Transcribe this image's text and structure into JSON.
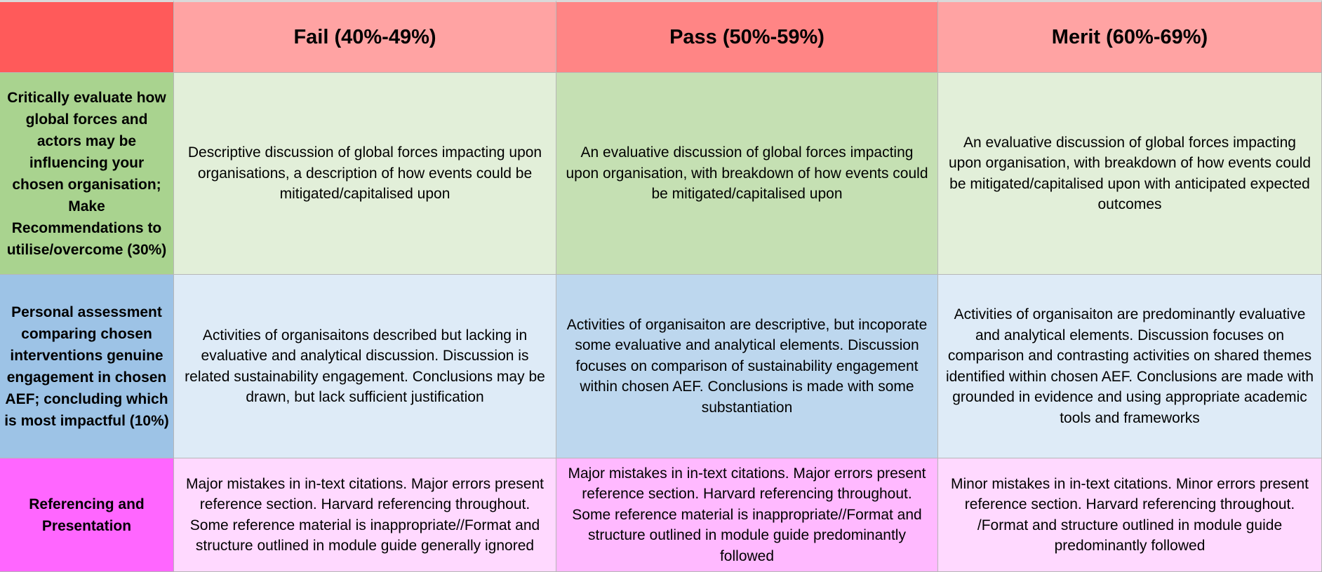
{
  "headers": {
    "corner": "",
    "fail": "Fail (40%-49%)",
    "pass": "Pass (50%-59%)",
    "merit": "Merit (60%-69%)"
  },
  "colors": {
    "corner": "#ff5a5a",
    "fail_header": "#ffa3a3",
    "pass_header": "#ff8585",
    "merit_header": "#ffa3a3",
    "row1_criterion": "#a9d38f",
    "row2_criterion": "#9dc3e6",
    "row3_criterion": "#ff66ff"
  },
  "rows": [
    {
      "criterion": "Critically evaluate how global forces and actors may be influencing your chosen organisation; Make Recommendations to utilise/overcome (30%)",
      "fail": "Descriptive discussion of global forces impacting upon organisations, a description of how events could be mitigated/capitalised upon",
      "pass": "An evaluative discussion of global forces impacting upon organisation, with breakdown of how events could be mitigated/capitalised upon",
      "merit": "An evaluative discussion of global forces impacting upon organisation, with breakdown of how events could be mitigated/capitalised upon with anticipated expected outcomes"
    },
    {
      "criterion": "Personal assessment comparing chosen interventions genuine engagement in chosen AEF; concluding which is most impactful (10%)",
      "fail": "Activities of organisaitons described but lacking in evaluative and analytical discussion. Discussion is related sustainability engagement. Conclusions may be drawn, but lack sufficient justification",
      "pass": "Activities of organisaiton are descriptive, but incoporate some evaluative and analytical elements. Discussion focuses on comparison of sustainability engagement within chosen AEF. Conclusions is made with some substantiation",
      "merit": "Activities of organisaiton are predominantly evaluative and analytical elements. Discussion focuses on comparison and contrasting activities on shared themes identified within chosen AEF. Conclusions are made with grounded in evidence and using appropriate academic tools and frameworks"
    },
    {
      "criterion": "Referencing and Presentation",
      "fail": "Major mistakes in in-text citations. Major errors present reference section. Harvard referencing throughout. Some reference material is inappropriate//Format and structure outlined in module guide generally ignored",
      "pass": "Major mistakes in in-text citations. Major errors present reference section. Harvard referencing throughout. Some reference material is inappropriate//Format and structure outlined in module guide predominantly followed",
      "merit": "Minor mistakes in in-text citations. Minor errors present reference section. Harvard referencing throughout. /Format and structure outlined in module guide predominantly followed"
    }
  ]
}
